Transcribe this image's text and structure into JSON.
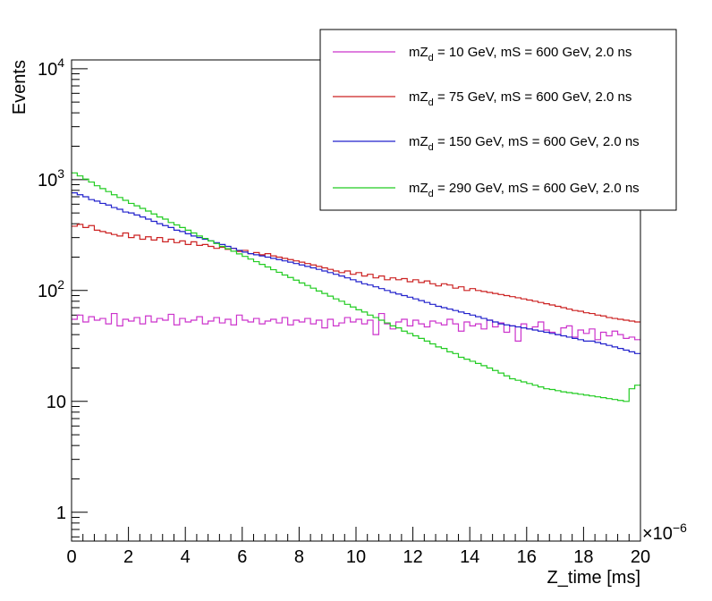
{
  "chart_data": {
    "type": "line",
    "xlabel": "Z_time [ms]",
    "ylabel": "Events",
    "x_multiplier_label": "×10",
    "x_multiplier_exp": "−6",
    "xlim": [
      0,
      20
    ],
    "ylim": [
      0.55,
      12000
    ],
    "yscale": "log",
    "x_ticks": [
      "0",
      "2",
      "4",
      "6",
      "8",
      "10",
      "12",
      "14",
      "16",
      "18",
      "20"
    ],
    "y_ticks": [
      {
        "value": 1,
        "base": "1",
        "exp": ""
      },
      {
        "value": 10,
        "base": "10",
        "exp": ""
      },
      {
        "value": 100,
        "base": "10",
        "exp": "2"
      },
      {
        "value": 1000,
        "base": "10",
        "exp": "3"
      },
      {
        "value": 10000,
        "base": "10",
        "exp": "4"
      }
    ],
    "grid": false,
    "legend_position": "top-right",
    "bin_width": 0.2,
    "series": [
      {
        "name_prefix": "mZ",
        "name_sub": "d",
        "name_suffix": " = 10 GeV, mS = 600 GeV, 2.0 ns",
        "color": "#cc33cc",
        "values": [
          55,
          60,
          52,
          58,
          54,
          56,
          50,
          62,
          48,
          55,
          53,
          57,
          50,
          59,
          52,
          56,
          54,
          61,
          49,
          56,
          52,
          54,
          58,
          50,
          53,
          57,
          51,
          55,
          49,
          60,
          54,
          52,
          56,
          50,
          53,
          55,
          51,
          57,
          49,
          54,
          52,
          56,
          50,
          54,
          46,
          55,
          48,
          51,
          57,
          52,
          55,
          50,
          54,
          40,
          62,
          50,
          45,
          52,
          55,
          48,
          54,
          50,
          47,
          53,
          51,
          49,
          55,
          50,
          43,
          52,
          48,
          50,
          45,
          54,
          47,
          51,
          42,
          48,
          35,
          50,
          45,
          47,
          52,
          44,
          42,
          40,
          46,
          48,
          38,
          44,
          41,
          45,
          36,
          42,
          39,
          43,
          40,
          37,
          38,
          36
        ]
      },
      {
        "name_prefix": "mZ",
        "name_sub": "d",
        "name_suffix": " = 75 GeV, mS = 600 GeV, 2.0 ns",
        "color": "#cc2222",
        "values": [
          380,
          395,
          370,
          385,
          350,
          340,
          330,
          320,
          310,
          330,
          300,
          315,
          290,
          305,
          285,
          300,
          275,
          290,
          270,
          280,
          260,
          275,
          255,
          260,
          250,
          240,
          245,
          235,
          240,
          225,
          230,
          215,
          220,
          210,
          215,
          205,
          200,
          195,
          190,
          185,
          180,
          175,
          170,
          165,
          160,
          155,
          150,
          145,
          150,
          140,
          145,
          135,
          140,
          130,
          135,
          125,
          130,
          125,
          128,
          120,
          125,
          118,
          122,
          115,
          110,
          115,
          112,
          105,
          108,
          100,
          104,
          100,
          98,
          96,
          94,
          92,
          90,
          88,
          86,
          84,
          82,
          80,
          78,
          76,
          74,
          72,
          70,
          68,
          66,
          65,
          63,
          62,
          60,
          59,
          57,
          56,
          55,
          54,
          53,
          52
        ]
      },
      {
        "name_prefix": "mZ",
        "name_sub": "d",
        "name_suffix": " = 150 GeV, mS = 600 GeV, 2.0 ns",
        "color": "#2222cc",
        "values": [
          760,
          730,
          700,
          660,
          640,
          610,
          590,
          560,
          540,
          510,
          500,
          480,
          460,
          440,
          420,
          400,
          385,
          370,
          350,
          340,
          325,
          310,
          300,
          290,
          280,
          270,
          260,
          250,
          240,
          230,
          222,
          215,
          210,
          205,
          200,
          195,
          190,
          185,
          180,
          175,
          170,
          165,
          160,
          155,
          150,
          145,
          140,
          135,
          130,
          125,
          120,
          115,
          112,
          108,
          104,
          100,
          96,
          93,
          90,
          87,
          84,
          81,
          78,
          75,
          72,
          70,
          68,
          66,
          64,
          62,
          60,
          58,
          56,
          54,
          52,
          50,
          49,
          48,
          47,
          46,
          45,
          44,
          43,
          42,
          41,
          40,
          39,
          38,
          37,
          36,
          35,
          35,
          34,
          33,
          32,
          31,
          30,
          29,
          28,
          27
        ]
      },
      {
        "name_prefix": "mZ",
        "name_sub": "d",
        "name_suffix": " = 290 GeV, mS = 600 GeV, 2.0 ns",
        "color": "#22cc22",
        "values": [
          1150,
          1080,
          1010,
          950,
          880,
          830,
          780,
          730,
          690,
          650,
          610,
          580,
          550,
          520,
          490,
          460,
          440,
          410,
          390,
          370,
          350,
          330,
          310,
          295,
          280,
          265,
          250,
          238,
          226,
          214,
          203,
          192,
          182,
          172,
          163,
          154,
          146,
          138,
          131,
          124,
          117,
          111,
          105,
          99,
          94,
          89,
          84,
          80,
          75,
          71,
          67,
          64,
          60,
          57,
          54,
          51,
          48,
          46,
          43,
          41,
          39,
          37,
          35,
          33,
          31,
          30,
          28,
          27,
          25,
          24,
          23,
          22,
          21,
          20,
          19,
          18,
          17,
          16,
          15.5,
          15,
          14.5,
          14,
          13.5,
          13,
          12.8,
          12.5,
          12.2,
          12,
          11.8,
          11.6,
          11.4,
          11.2,
          11,
          10.8,
          10.6,
          10.4,
          10.2,
          10,
          13,
          14
        ]
      }
    ]
  }
}
